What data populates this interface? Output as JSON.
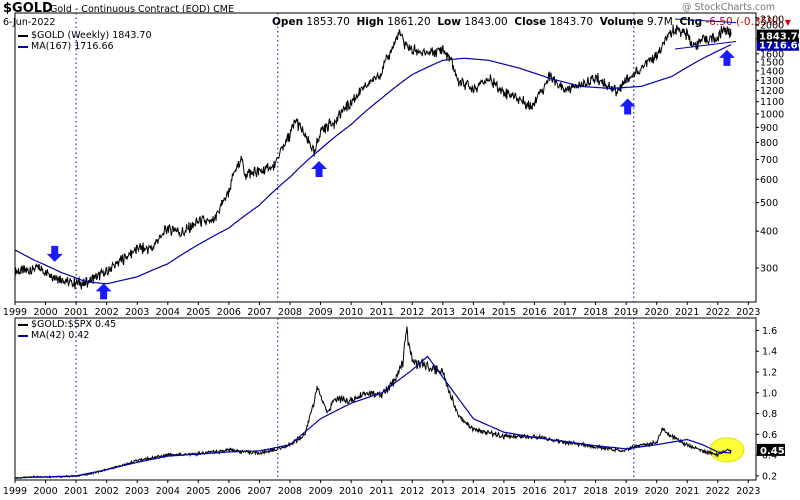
{
  "header": {
    "symbol": "$GOLD",
    "description": "Gold - Continuous Contract (EOD)",
    "exchange": "CME",
    "date": "6-Jun-2022",
    "watermark": "@ StockCharts.com",
    "quote": {
      "open_label": "Open",
      "open": "1853.70",
      "high_label": "High",
      "high": "1861.20",
      "low_label": "Low",
      "low": "1843.00",
      "close_label": "Close",
      "close": "1843.70",
      "volume_label": "Volume",
      "volume": "9.7M",
      "chg_label": "Chg",
      "chg": "-6.50 (-0.35%)"
    }
  },
  "colors": {
    "price": "#000000",
    "ma": "#0000aa",
    "arrow": "#1a1aff",
    "highlight": "#ffff33",
    "badge_price": "#000000",
    "badge_ma": "#0000aa"
  },
  "chart_data": [
    {
      "type": "line",
      "legend": [
        {
          "label": "$GOLD (Weekly) 1843.70",
          "color": "#000000"
        },
        {
          "label": "MA(167) 1716.66",
          "color": "#0000aa"
        }
      ],
      "scale": "log",
      "ylim": [
        230,
        2200
      ],
      "yticks": [
        300,
        400,
        500,
        600,
        700,
        800,
        900,
        1000,
        1100,
        1200,
        1300,
        1400,
        1500,
        1600,
        1800,
        2000,
        2100
      ],
      "last_price_badge": "1843.70",
      "last_ma_badge": "1716.66",
      "series": [
        {
          "name": "$GOLD (Weekly)",
          "x": [
            1999.0,
            1999.7,
            2000.2,
            2000.6,
            2001.2,
            2001.6,
            2002.0,
            2002.5,
            2003.0,
            2003.5,
            2004.0,
            2004.5,
            2005.0,
            2005.5,
            2006.0,
            2006.4,
            2006.5,
            2007.0,
            2007.5,
            2008.0,
            2008.2,
            2008.8,
            2009.0,
            2009.5,
            2010.0,
            2010.5,
            2011.0,
            2011.6,
            2011.7,
            2012.0,
            2012.5,
            2013.0,
            2013.3,
            2013.5,
            2014.0,
            2014.5,
            2015.0,
            2015.5,
            2015.9,
            2016.5,
            2017.0,
            2017.5,
            2018.0,
            2018.7,
            2019.0,
            2019.5,
            2019.7,
            2020.0,
            2020.6,
            2021.0,
            2021.2,
            2021.5,
            2022.0,
            2022.2,
            2022.43
          ],
          "y": [
            290,
            300,
            285,
            272,
            265,
            278,
            290,
            320,
            350,
            350,
            410,
            395,
            430,
            430,
            550,
            720,
            620,
            640,
            670,
            850,
            950,
            730,
            880,
            950,
            1100,
            1240,
            1400,
            1880,
            1750,
            1650,
            1600,
            1650,
            1480,
            1300,
            1230,
            1310,
            1190,
            1120,
            1060,
            1330,
            1200,
            1250,
            1330,
            1190,
            1290,
            1420,
            1500,
            1560,
            1970,
            1850,
            1700,
            1790,
            1820,
            1950,
            1843.7
          ]
        },
        {
          "name": "MA(167)",
          "x": [
            1999.0,
            1999.6,
            2000.5,
            2001.3,
            2002.0,
            2003.0,
            2004.0,
            2005.0,
            2006.0,
            2007.0,
            2008.0,
            2009.0,
            2010.0,
            2011.0,
            2012.0,
            2013.0,
            2013.7,
            2014.5,
            2015.5,
            2016.5,
            2017.5,
            2018.5,
            2019.5,
            2020.5,
            2021.5,
            2022.43
          ],
          "y": [
            345,
            320,
            290,
            270,
            265,
            280,
            310,
            360,
            410,
            490,
            610,
            760,
            920,
            1130,
            1360,
            1520,
            1545,
            1520,
            1430,
            1320,
            1240,
            1220,
            1240,
            1340,
            1540,
            1716.66
          ]
        }
      ],
      "trendlines": [
        {
          "x": [
            2020.6,
            2022.6
          ],
          "y": [
            2100,
            2040
          ]
        },
        {
          "x": [
            2020.6,
            2022.6
          ],
          "y": [
            1660,
            1760
          ]
        }
      ],
      "signals": [
        {
          "x": 2000.3,
          "y": 335,
          "direction": "down"
        },
        {
          "x": 2001.9,
          "y": 250,
          "direction": "up"
        },
        {
          "x": 2008.95,
          "y": 650,
          "direction": "up"
        },
        {
          "x": 2019.05,
          "y": 1060,
          "direction": "up"
        },
        {
          "x": 2022.3,
          "y": 1550,
          "direction": "up"
        }
      ]
    },
    {
      "type": "line",
      "legend": [
        {
          "label": "$GOLD:$SPX 0.45",
          "color": "#000000"
        },
        {
          "label": "MA(42) 0.42",
          "color": "#0000aa"
        }
      ],
      "scale": "linear",
      "ylim": [
        0.16,
        1.72
      ],
      "yticks": [
        0.2,
        0.4,
        0.6,
        0.8,
        1.0,
        1.2,
        1.4,
        1.6
      ],
      "last_value_badge": "0.45",
      "series": [
        {
          "name": "$GOLD:$SPX",
          "x": [
            1999.0,
            1999.5,
            2000.0,
            2000.5,
            2001.0,
            2001.5,
            2002.0,
            2002.5,
            2003.0,
            2004.0,
            2005.0,
            2006.0,
            2007.0,
            2007.5,
            2008.0,
            2008.5,
            2008.9,
            2009.2,
            2009.5,
            2010.0,
            2010.5,
            2011.0,
            2011.4,
            2011.7,
            2011.8,
            2012.0,
            2012.5,
            2013.0,
            2013.5,
            2014.0,
            2015.0,
            2016.0,
            2017.0,
            2018.0,
            2018.9,
            2019.5,
            2020.0,
            2020.2,
            2020.5,
            2021.0,
            2021.5,
            2022.0,
            2022.2,
            2022.43
          ],
          "y": [
            0.18,
            0.19,
            0.19,
            0.19,
            0.2,
            0.22,
            0.26,
            0.3,
            0.35,
            0.4,
            0.41,
            0.45,
            0.42,
            0.45,
            0.5,
            0.6,
            1.05,
            0.82,
            0.95,
            0.92,
            1.0,
            0.98,
            1.1,
            1.3,
            1.62,
            1.3,
            1.25,
            1.2,
            0.78,
            0.65,
            0.58,
            0.58,
            0.52,
            0.48,
            0.44,
            0.5,
            0.52,
            0.65,
            0.58,
            0.5,
            0.44,
            0.4,
            0.44,
            0.45
          ]
        },
        {
          "name": "MA(42)",
          "x": [
            1999.0,
            2000.0,
            2001.0,
            2002.0,
            2003.0,
            2004.0,
            2005.0,
            2006.0,
            2007.0,
            2008.0,
            2009.0,
            2010.0,
            2011.0,
            2012.0,
            2012.5,
            2013.0,
            2014.0,
            2015.0,
            2016.0,
            2017.0,
            2018.0,
            2019.0,
            2020.0,
            2021.0,
            2021.5,
            2022.0,
            2022.43
          ],
          "y": [
            0.18,
            0.19,
            0.2,
            0.26,
            0.33,
            0.39,
            0.41,
            0.43,
            0.44,
            0.5,
            0.75,
            0.9,
            1.0,
            1.22,
            1.35,
            1.15,
            0.75,
            0.62,
            0.57,
            0.53,
            0.49,
            0.46,
            0.5,
            0.55,
            0.5,
            0.43,
            0.42
          ]
        }
      ],
      "highlight": {
        "x": 2022.3,
        "y": 0.45
      }
    }
  ],
  "x_axis": {
    "xlim": [
      1999.0,
      2023.25
    ],
    "ticks": [
      "1999",
      "2000",
      "2001",
      "2002",
      "2003",
      "2004",
      "2005",
      "2006",
      "2007",
      "2008",
      "2009",
      "2010",
      "2011",
      "2012",
      "2013",
      "2014",
      "2015",
      "2016",
      "2017",
      "2018",
      "2019",
      "2020",
      "2021",
      "2022",
      "2023"
    ],
    "tick_values": [
      1999,
      2000,
      2001,
      2002,
      2003,
      2004,
      2005,
      2006,
      2007,
      2008,
      2009,
      2010,
      2011,
      2012,
      2013,
      2014,
      2015,
      2016,
      2017,
      2018,
      2019,
      2020,
      2021,
      2022,
      2023
    ],
    "event_lines": [
      2001.0,
      2007.6,
      2019.25
    ]
  }
}
